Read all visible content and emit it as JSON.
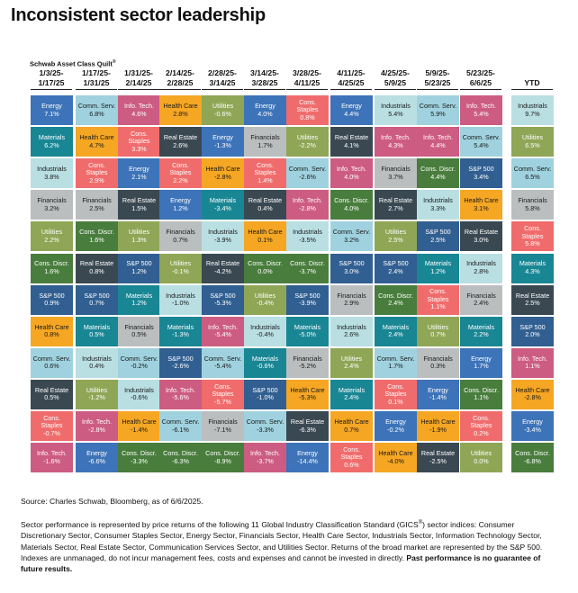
{
  "title": "Inconsistent sector leadership",
  "quilt_label": "Schwab Asset Class Quilt",
  "quilt_label_mark": "®",
  "colors": {
    "Energy": "#3d73b8",
    "Comm. Serv.": "#9fd2de",
    "Info. Tech.": "#cd5c82",
    "Health Care": "#f5a623",
    "Utilities": "#8fa656",
    "Industrials": "#b9dfe3",
    "Cons. Staples": "#f06c6c",
    "Real Estate": "#3a4852",
    "Materials": "#198694",
    "Financials": "#bbbebf",
    "Cons. Discr.": "#497d3d",
    "S&P 500": "#315f91"
  },
  "dark_text_sectors": [
    "Comm. Serv.",
    "Health Care",
    "Industrials",
    "Financials"
  ],
  "chart_data": {
    "type": "table",
    "columns": [
      {
        "period": [
          "1/3/25-",
          "1/17/25"
        ],
        "entries": [
          [
            "Energy",
            "7.1%"
          ],
          [
            "Materials",
            "6.2%"
          ],
          [
            "Industrials",
            "3.8%"
          ],
          [
            "Financials",
            "3.2%"
          ],
          [
            "Utilities",
            "2.2%"
          ],
          [
            "Cons. Discr.",
            "1.6%"
          ],
          [
            "S&P 500",
            "0.9%"
          ],
          [
            "Health Care",
            "0.8%"
          ],
          [
            "Comm. Serv.",
            "0.6%"
          ],
          [
            "Real Estate",
            "0.5%"
          ],
          [
            "Cons. Staples",
            "-0.7%"
          ],
          [
            "Info. Tech.",
            "-1.6%"
          ]
        ]
      },
      {
        "period": [
          "1/17/25-",
          "1/31/25"
        ],
        "entries": [
          [
            "Comm. Serv.",
            "6.8%"
          ],
          [
            "Health Care",
            "4.7%"
          ],
          [
            "Cons. Staples",
            "2.9%"
          ],
          [
            "Financials",
            "2.5%"
          ],
          [
            "Cons. Discr.",
            "1.6%"
          ],
          [
            "Real Estate",
            "0.8%"
          ],
          [
            "S&P 500",
            "0.7%"
          ],
          [
            "Materials",
            "0.5%"
          ],
          [
            "Industrials",
            "0.4%"
          ],
          [
            "Utilities",
            "-1.2%"
          ],
          [
            "Info. Tech.",
            "-2.8%"
          ],
          [
            "Energy",
            "-6.6%"
          ]
        ]
      },
      {
        "period": [
          "1/31/25-",
          "2/14/25"
        ],
        "entries": [
          [
            "Info. Tech.",
            "4.6%"
          ],
          [
            "Cons. Staples",
            "3.3%"
          ],
          [
            "Energy",
            "2.1%"
          ],
          [
            "Real Estate",
            "1.5%"
          ],
          [
            "Utilities",
            "1.3%"
          ],
          [
            "S&P 500",
            "1.2%"
          ],
          [
            "Materials",
            "1.2%"
          ],
          [
            "Financials",
            "0.5%"
          ],
          [
            "Comm. Serv.",
            "-0.2%"
          ],
          [
            "Industrials",
            "-0.6%"
          ],
          [
            "Health Care",
            "-1.4%"
          ],
          [
            "Cons. Discr.",
            "-3.3%"
          ]
        ]
      },
      {
        "period": [
          "2/14/25-",
          "2/28/25"
        ],
        "entries": [
          [
            "Health Care",
            "2.8%"
          ],
          [
            "Real Estate",
            "2.6%"
          ],
          [
            "Cons. Staples",
            "2.2%"
          ],
          [
            "Energy",
            "1.2%"
          ],
          [
            "Financials",
            "0.7%"
          ],
          [
            "Utilities",
            "-0.1%"
          ],
          [
            "Industrials",
            "-1.0%"
          ],
          [
            "Materials",
            "-1.3%"
          ],
          [
            "S&P 500",
            "-2.6%"
          ],
          [
            "Info. Tech.",
            "-5.6%"
          ],
          [
            "Comm. Serv.",
            "-6.1%"
          ],
          [
            "Cons. Discr.",
            "-6.3%"
          ]
        ]
      },
      {
        "period": [
          "2/28/25-",
          "3/14/25"
        ],
        "entries": [
          [
            "Utilities",
            "-0.6%"
          ],
          [
            "Energy",
            "-1.3%"
          ],
          [
            "Health Care",
            "-2.8%"
          ],
          [
            "Materials",
            "-3.4%"
          ],
          [
            "Industrials",
            "-3.9%"
          ],
          [
            "Real Estate",
            "-4.2%"
          ],
          [
            "S&P 500",
            "-5.3%"
          ],
          [
            "Info. Tech.",
            "-5.4%"
          ],
          [
            "Comm. Serv.",
            "-5.4%"
          ],
          [
            "Cons. Staples",
            "-5.7%"
          ],
          [
            "Financials",
            "-7.1%"
          ],
          [
            "Cons. Discr.",
            "-8.9%"
          ]
        ]
      },
      {
        "period": [
          "3/14/25-",
          "3/28/25"
        ],
        "entries": [
          [
            "Energy",
            "4.0%"
          ],
          [
            "Financials",
            "1.7%"
          ],
          [
            "Cons. Staples",
            "1.4%"
          ],
          [
            "Real Estate",
            "0.4%"
          ],
          [
            "Health Care",
            "0.1%"
          ],
          [
            "Cons. Discr.",
            "0.0%"
          ],
          [
            "Utilities",
            "-0.4%"
          ],
          [
            "Industrials",
            "-0.4%"
          ],
          [
            "Materials",
            "-0.6%"
          ],
          [
            "S&P 500",
            "-1.0%"
          ],
          [
            "Comm. Serv.",
            "-3.3%"
          ],
          [
            "Info. Tech.",
            "-3.7%"
          ]
        ]
      },
      {
        "period": [
          "3/28/25-",
          "4/11/25"
        ],
        "entries": [
          [
            "Cons. Staples",
            "0.8%"
          ],
          [
            "Utilities",
            "-2.2%"
          ],
          [
            "Comm. Serv.",
            "-2.6%"
          ],
          [
            "Info. Tech.",
            "-2.8%"
          ],
          [
            "Industrials",
            "-3.5%"
          ],
          [
            "Cons. Discr.",
            "-3.7%"
          ],
          [
            "S&P 500",
            "-3.9%"
          ],
          [
            "Materials",
            "-5.0%"
          ],
          [
            "Financials",
            "-5.2%"
          ],
          [
            "Health Care",
            "-5.3%"
          ],
          [
            "Real Estate",
            "-6.3%"
          ],
          [
            "Energy",
            "-14.4%"
          ]
        ]
      },
      {
        "period": [
          "4/11/25-",
          "4/25/25"
        ],
        "entries": [
          [
            "Energy",
            "4.4%"
          ],
          [
            "Real Estate",
            "4.1%"
          ],
          [
            "Info. Tech.",
            "4.0%"
          ],
          [
            "Cons. Discr.",
            "4.0%"
          ],
          [
            "Comm. Serv.",
            "3.2%"
          ],
          [
            "S&P 500",
            "3.0%"
          ],
          [
            "Financials",
            "2.9%"
          ],
          [
            "Industrials",
            "2.6%"
          ],
          [
            "Utilities",
            "2.4%"
          ],
          [
            "Materials",
            "2.4%"
          ],
          [
            "Health Care",
            "0.7%"
          ],
          [
            "Cons. Staples",
            "0.6%"
          ]
        ]
      },
      {
        "period": [
          "4/25/25-",
          "5/9/25"
        ],
        "entries": [
          [
            "Industrials",
            "5.4%"
          ],
          [
            "Info. Tech.",
            "4.3%"
          ],
          [
            "Financials",
            "3.7%"
          ],
          [
            "Real Estate",
            "2.7%"
          ],
          [
            "Utilities",
            "2.5%"
          ],
          [
            "S&P 500",
            "2.4%"
          ],
          [
            "Cons. Discr.",
            "2.4%"
          ],
          [
            "Materials",
            "2.4%"
          ],
          [
            "Comm. Serv.",
            "1.7%"
          ],
          [
            "Cons. Staples",
            "0.1%"
          ],
          [
            "Energy",
            "-0.2%"
          ],
          [
            "Health Care",
            "-4.0%"
          ]
        ]
      },
      {
        "period": [
          "5/9/25-",
          "5/23/25"
        ],
        "entries": [
          [
            "Comm. Serv.",
            "5.9%"
          ],
          [
            "Info. Tech.",
            "4.4%"
          ],
          [
            "Cons. Discr.",
            "4.4%"
          ],
          [
            "Industrials",
            "3.3%"
          ],
          [
            "S&P 500",
            "2.5%"
          ],
          [
            "Materials",
            "1.2%"
          ],
          [
            "Cons. Staples",
            "1.1%"
          ],
          [
            "Utilities",
            "0.7%"
          ],
          [
            "Financials",
            "0.3%"
          ],
          [
            "Energy",
            "-1.4%"
          ],
          [
            "Health Care",
            "-1.9%"
          ],
          [
            "Real Estate",
            "-2.5%"
          ]
        ]
      },
      {
        "period": [
          "5/23/25-",
          "6/6/25"
        ],
        "entries": [
          [
            "Info. Tech.",
            "5.4%"
          ],
          [
            "Comm. Serv.",
            "5.4%"
          ],
          [
            "S&P 500",
            "3.4%"
          ],
          [
            "Health Care",
            "3.1%"
          ],
          [
            "Real Estate",
            "3.0%"
          ],
          [
            "Industrials",
            "2.8%"
          ],
          [
            "Financials",
            "2.4%"
          ],
          [
            "Materials",
            "2.2%"
          ],
          [
            "Energy",
            "1.7%"
          ],
          [
            "Cons. Discr.",
            "1.1%"
          ],
          [
            "Cons. Staples",
            "0.2%"
          ],
          [
            "Utilities",
            "0.0%"
          ]
        ]
      },
      {
        "period": [
          "YTD"
        ],
        "entries": [
          [
            "Industrials",
            "9.7%"
          ],
          [
            "Utilities",
            "6.5%"
          ],
          [
            "Comm. Serv.",
            "6.5%"
          ],
          [
            "Financials",
            "5.8%"
          ],
          [
            "Cons. Staples",
            "5.8%"
          ],
          [
            "Materials",
            "4.3%"
          ],
          [
            "Real Estate",
            "2.5%"
          ],
          [
            "S&P 500",
            "2.0%"
          ],
          [
            "Info. Tech.",
            "1.1%"
          ],
          [
            "Health Care",
            "-2.8%"
          ],
          [
            "Energy",
            "-3.4%"
          ],
          [
            "Cons. Discr.",
            "-6.8%"
          ]
        ]
      }
    ]
  },
  "footer": {
    "source": "Source: Charles Schwab, Bloomberg, as of 6/6/2025.",
    "note_1": "Sector performance is represented by price returns of the following 11 Global Industry Classification Standard (GICS",
    "note_mark": "®",
    "note_2": ") sector indices: Consumer Discretionary Sector, Consumer Staples Sector, Energy Sector, Financials Sector, Health Care Sector, Industrials Sector, Information Technology Sector, Materials Sector, Real Estate Sector, Communication Services Sector, and Utilities Sector. Returns of the broad market are represented by the S&P 500. Indexes are unmanaged, do not incur management fees, costs and expenses and cannot be invested in directly. ",
    "note_bold": "Past performance is no guarantee of future results."
  }
}
